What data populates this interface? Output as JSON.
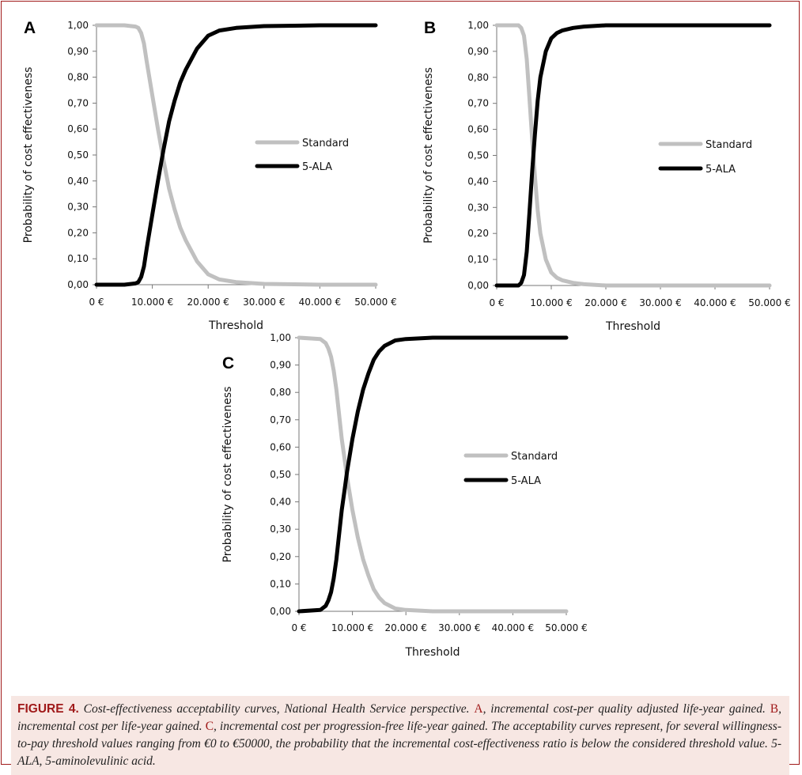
{
  "chart_data": [
    {
      "type": "line",
      "panel": "A",
      "xlabel": "Threshold",
      "ylabel": "Probability of cost effectiveness",
      "xticks": [
        "0 €",
        "10.000 €",
        "20.000 €",
        "30.000 €",
        "40.000 €",
        "50.000 €"
      ],
      "yticks": [
        "0,00",
        "0,10",
        "0,20",
        "0,30",
        "0,40",
        "0,50",
        "0,60",
        "0,70",
        "0,80",
        "0,90",
        "1,00"
      ],
      "xlim": [
        0,
        50000
      ],
      "ylim": [
        0,
        1
      ],
      "legend": "center-right",
      "series": [
        {
          "name": "Standard",
          "color": "#c0c0c0",
          "x": [
            0,
            5000,
            7000,
            7500,
            8000,
            8500,
            9000,
            10000,
            11000,
            12000,
            13000,
            14000,
            15000,
            16000,
            18000,
            20000,
            22000,
            25000,
            30000,
            40000,
            50000
          ],
          "y": [
            1.0,
            1.0,
            0.995,
            0.99,
            0.97,
            0.93,
            0.86,
            0.73,
            0.6,
            0.48,
            0.37,
            0.29,
            0.22,
            0.17,
            0.09,
            0.04,
            0.02,
            0.01,
            0.003,
            0.0,
            0.0
          ]
        },
        {
          "name": "5-ALA",
          "color": "#000000",
          "x": [
            0,
            5000,
            7000,
            7500,
            8000,
            8500,
            9000,
            10000,
            11000,
            12000,
            13000,
            14000,
            15000,
            16000,
            18000,
            20000,
            22000,
            25000,
            30000,
            40000,
            50000
          ],
          "y": [
            0.0,
            0.0,
            0.005,
            0.01,
            0.03,
            0.07,
            0.14,
            0.27,
            0.4,
            0.52,
            0.63,
            0.71,
            0.78,
            0.83,
            0.91,
            0.96,
            0.98,
            0.99,
            0.997,
            1.0,
            1.0
          ]
        }
      ]
    },
    {
      "type": "line",
      "panel": "B",
      "xlabel": "Threshold",
      "ylabel": "Probability of cost effectiveness",
      "xticks": [
        "0 €",
        "10.000 €",
        "20.000 €",
        "30.000 €",
        "40.000 €",
        "50.000 €"
      ],
      "yticks": [
        "0,00",
        "0,10",
        "0,20",
        "0,30",
        "0,40",
        "0,50",
        "0,60",
        "0,70",
        "0,80",
        "0,90",
        "1,00"
      ],
      "xlim": [
        0,
        50000
      ],
      "ylim": [
        0,
        1
      ],
      "legend": "center-right",
      "series": [
        {
          "name": "Standard",
          "color": "#c0c0c0",
          "x": [
            0,
            4000,
            4500,
            5000,
            5500,
            6000,
            6500,
            7000,
            7500,
            8000,
            9000,
            10000,
            11000,
            12000,
            14000,
            16000,
            20000,
            30000,
            50000
          ],
          "y": [
            1.0,
            1.0,
            0.99,
            0.96,
            0.87,
            0.72,
            0.56,
            0.42,
            0.29,
            0.2,
            0.1,
            0.05,
            0.03,
            0.02,
            0.01,
            0.005,
            0.0,
            0.0,
            0.0
          ]
        },
        {
          "name": "5-ALA",
          "color": "#000000",
          "x": [
            0,
            4000,
            4500,
            5000,
            5500,
            6000,
            6500,
            7000,
            7500,
            8000,
            9000,
            10000,
            11000,
            12000,
            14000,
            16000,
            20000,
            30000,
            50000
          ],
          "y": [
            0.0,
            0.0,
            0.01,
            0.04,
            0.13,
            0.28,
            0.44,
            0.58,
            0.71,
            0.8,
            0.9,
            0.95,
            0.97,
            0.98,
            0.99,
            0.995,
            1.0,
            1.0,
            1.0
          ]
        }
      ]
    },
    {
      "type": "line",
      "panel": "C",
      "xlabel": "Threshold",
      "ylabel": "Probability of cost effectiveness",
      "xticks": [
        "0 €",
        "10.000 €",
        "20.000 €",
        "30.000 €",
        "40.000 €",
        "50.000 €"
      ],
      "yticks": [
        "0,00",
        "0,10",
        "0,20",
        "0,30",
        "0,40",
        "0,50",
        "0,60",
        "0,70",
        "0,80",
        "0,90",
        "1,00"
      ],
      "xlim": [
        0,
        50000
      ],
      "ylim": [
        0,
        1
      ],
      "legend": "center-right",
      "series": [
        {
          "name": "Standard",
          "color": "#c0c0c0",
          "x": [
            0,
            4000,
            5000,
            5500,
            6000,
            6500,
            7000,
            7500,
            8000,
            8500,
            9000,
            10000,
            11000,
            12000,
            13000,
            14000,
            15000,
            16000,
            18000,
            20000,
            25000,
            30000,
            50000
          ],
          "y": [
            1.0,
            0.995,
            0.98,
            0.96,
            0.93,
            0.88,
            0.81,
            0.72,
            0.63,
            0.56,
            0.49,
            0.37,
            0.27,
            0.19,
            0.13,
            0.08,
            0.05,
            0.03,
            0.01,
            0.005,
            0.0,
            0.0,
            0.0
          ]
        },
        {
          "name": "5-ALA",
          "color": "#000000",
          "x": [
            0,
            4000,
            5000,
            5500,
            6000,
            6500,
            7000,
            7500,
            8000,
            8500,
            9000,
            10000,
            11000,
            12000,
            13000,
            14000,
            15000,
            16000,
            18000,
            20000,
            25000,
            30000,
            50000
          ],
          "y": [
            0.0,
            0.005,
            0.02,
            0.04,
            0.07,
            0.12,
            0.19,
            0.28,
            0.37,
            0.44,
            0.51,
            0.63,
            0.73,
            0.81,
            0.87,
            0.92,
            0.95,
            0.97,
            0.99,
            0.995,
            1.0,
            1.0,
            1.0
          ]
        }
      ]
    }
  ],
  "caption": {
    "label": "FIGURE 4.",
    "t1": " Cost-effectiveness acceptability curves, National Health Service perspective. ",
    "refA": "A",
    "t2": ", incremental cost-per quality adjusted life-year gained. ",
    "refB": "B",
    "t3": ", incremental cost per life-year gained. ",
    "refC": "C",
    "t4": ", incremental cost per progression-free life-year gained. The acceptability curves represent, for several willingness-to-pay threshold values ranging from €0 to €50000, the probability that the incremental cost-effectiveness ratio is below the considered threshold value. 5-ALA, 5-aminolevulinic acid."
  }
}
